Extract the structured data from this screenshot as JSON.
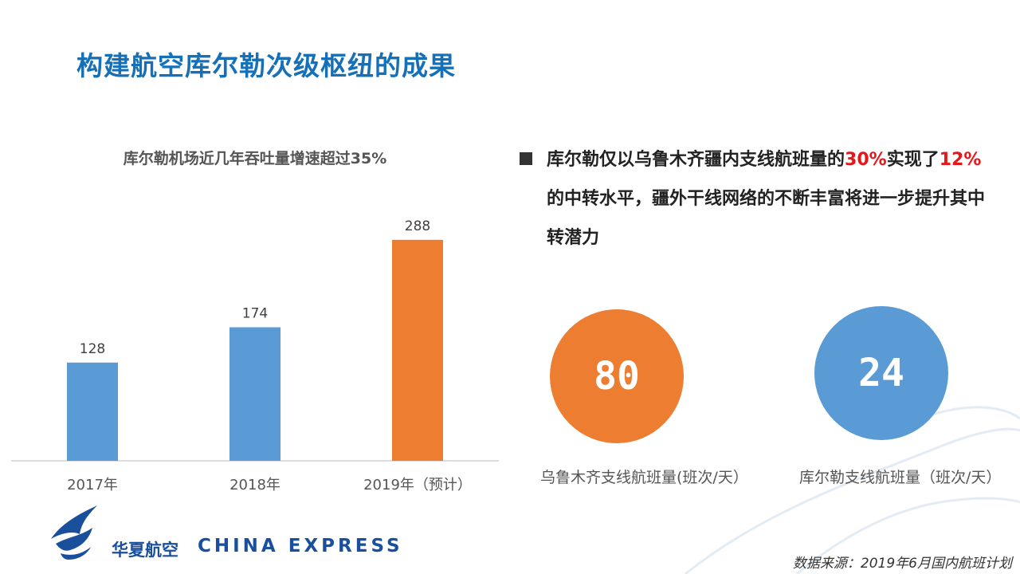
{
  "title": "构建航空库尔勒次级枢纽的成果",
  "chart_data": {
    "type": "bar",
    "title": "库尔勒机场近几年吞吐量增速超过35%",
    "categories": [
      "2017年",
      "2018年",
      "2019年（预计）"
    ],
    "values": [
      128,
      174,
      288
    ],
    "data_labels": [
      "128",
      "174",
      "288"
    ],
    "colors": [
      "#5b9bd5",
      "#5b9bd5",
      "#ed7d31"
    ],
    "ylim": [
      0,
      320
    ],
    "grid": false,
    "legend": "none"
  },
  "bullet": {
    "p1": "库尔勒仅以乌鲁木齐疆内支线航班量的",
    "h1": "30%",
    "p2": "实现了",
    "h2": "12%",
    "p3": "的中转水平，疆外干线网络的不断丰富将进一步提升其中转潜力",
    "highlight_color": "#e8161b"
  },
  "stats": [
    {
      "value": "80",
      "label": "乌鲁木齐支线航班量(班次/天）",
      "color": "#ed7d31"
    },
    {
      "value": "24",
      "label": "库尔勒支线航班量（班次/天）",
      "color": "#5b9bd5"
    }
  ],
  "logo": {
    "cn": "华夏航空",
    "en": "CHINA EXPRESS",
    "icon": "bird-logo-icon"
  },
  "source": "数据来源：2019年6月国内航班计划"
}
